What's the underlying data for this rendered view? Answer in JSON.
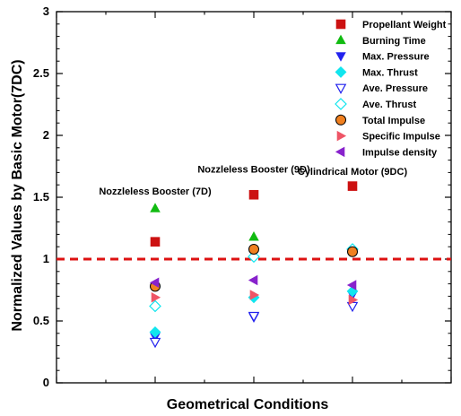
{
  "chart_data": {
    "type": "scatter",
    "xlabel": "Geometrical Conditions",
    "ylabel": "Normalized Values by Basic Motor(7DC)",
    "ylim": [
      0,
      3
    ],
    "yticks": [
      "0",
      "0.5",
      "1",
      "1.5",
      "2",
      "2.5",
      "3"
    ],
    "xlim": [
      0,
      4
    ],
    "x": [
      1,
      2,
      3
    ],
    "reference_line": {
      "y": 1,
      "color": "#dd1111",
      "style": "dashed"
    },
    "annotations": [
      {
        "text": "Nozzleless Booster (7D)",
        "x": 1,
        "y": 1.55
      },
      {
        "text": "Nozzleless Booster (9D)",
        "x": 2,
        "y": 1.73
      },
      {
        "text": "Cylindrical Motor (9DC)",
        "x": 3,
        "y": 1.71
      }
    ],
    "series": [
      {
        "name": "Propellant Weight",
        "marker": "square",
        "color": "#cc1111",
        "values": [
          1.14,
          1.52,
          1.59
        ]
      },
      {
        "name": "Burning Time",
        "marker": "triangle-up",
        "color": "#11bb11",
        "values": [
          1.41,
          1.18,
          1.08
        ]
      },
      {
        "name": "Max. Pressure",
        "marker": "triangle-down",
        "color": "#2222ee",
        "values": [
          0.37,
          0.53,
          0.71
        ]
      },
      {
        "name": "Max. Thrust",
        "marker": "diamond",
        "color": "#11e5ee",
        "values": [
          0.41,
          0.69,
          0.74
        ]
      },
      {
        "name": "Ave. Pressure",
        "marker": "triangle-down-open",
        "color": "#2222ee",
        "values": [
          0.33,
          0.54,
          0.62
        ]
      },
      {
        "name": "Ave. Thrust",
        "marker": "diamond-open",
        "color": "#11e5ee",
        "values": [
          0.62,
          1.02,
          1.08
        ]
      },
      {
        "name": "Total Impulse",
        "marker": "circle",
        "color": "#f08020",
        "values": [
          0.78,
          1.08,
          1.06
        ]
      },
      {
        "name": "Specific Impulse",
        "marker": "triangle-right",
        "color": "#ee5566",
        "values": [
          0.69,
          0.71,
          0.67
        ]
      },
      {
        "name": "Impulse density",
        "marker": "triangle-left",
        "color": "#8822cc",
        "values": [
          0.81,
          0.83,
          0.79
        ]
      }
    ],
    "legend_placement": "top-right",
    "grid": false
  }
}
